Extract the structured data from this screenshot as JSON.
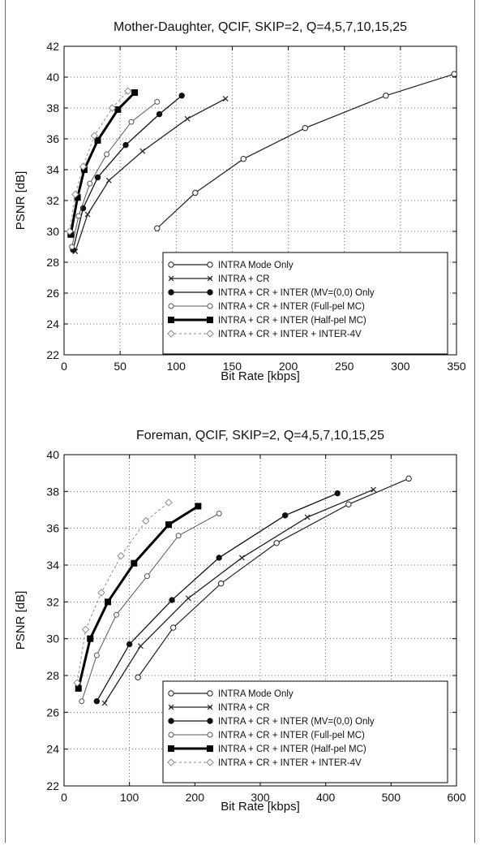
{
  "chart_data": [
    {
      "type": "line",
      "title": "Mother-Daughter, QCIF, SKIP=2, Q=4,5,7,10,15,25",
      "xlabel": "Bit Rate [kbps]",
      "ylabel": "PSNR [dB]",
      "xlim": [
        0,
        350
      ],
      "ylim": [
        22,
        42
      ],
      "xticks": [
        0,
        50,
        100,
        150,
        200,
        250,
        300,
        350
      ],
      "yticks": [
        22,
        24,
        26,
        28,
        30,
        32,
        34,
        36,
        38,
        40,
        42
      ],
      "grid": true,
      "legend_position": "lower-right",
      "series": [
        {
          "name": "INTRA Mode Only",
          "marker": "open-circle",
          "color": "#222222",
          "width": 1.2,
          "dash": "",
          "x": [
            83,
            117,
            160,
            215,
            287,
            348
          ],
          "y": [
            30.2,
            32.5,
            34.7,
            36.7,
            38.8,
            40.2
          ]
        },
        {
          "name": "INTRA + CR",
          "marker": "x",
          "color": "#222222",
          "width": 1.3,
          "dash": "",
          "x": [
            10,
            21,
            40,
            70,
            110,
            144
          ],
          "y": [
            28.7,
            31.1,
            33.3,
            35.2,
            37.3,
            38.6
          ]
        },
        {
          "name": "INTRA + CR + INTER (MV=(0,0) Only",
          "marker": "dot",
          "color": "#111111",
          "width": 1.3,
          "dash": "",
          "x": [
            8,
            17,
            30,
            55,
            85,
            105
          ],
          "y": [
            28.8,
            31.5,
            33.5,
            35.6,
            37.6,
            38.8
          ]
        },
        {
          "name": "INTRA + CR + INTER (Full-pel MC)",
          "marker": "star",
          "color": "#555555",
          "width": 1.0,
          "dash": "",
          "x": [
            7,
            13,
            23,
            38,
            60,
            83
          ],
          "y": [
            29.0,
            31.0,
            33.1,
            35.0,
            37.1,
            38.4
          ]
        },
        {
          "name": "INTRA + CR + INTER (Half-pel MC)",
          "marker": "square",
          "color": "#000000",
          "width": 3.0,
          "dash": "",
          "x": [
            6,
            12,
            18,
            30,
            48,
            63
          ],
          "y": [
            29.8,
            32.2,
            34.0,
            35.9,
            37.9,
            39.0
          ]
        },
        {
          "name": "INTRA + CR + INTER + INTER-4V",
          "marker": "diamond",
          "color": "#888888",
          "width": 1.0,
          "dash": "3,3",
          "x": [
            5,
            10,
            17,
            27,
            43,
            57
          ],
          "y": [
            30.0,
            32.4,
            34.2,
            36.2,
            38.0,
            39.1
          ]
        }
      ]
    },
    {
      "type": "line",
      "title": "Foreman, QCIF, SKIP=2, Q=4,5,7,10,15,25",
      "xlabel": "Bit Rate [kbps]",
      "ylabel": "PSNR [dB]",
      "xlim": [
        0,
        600
      ],
      "ylim": [
        22,
        40
      ],
      "xticks": [
        0,
        100,
        200,
        300,
        400,
        500,
        600
      ],
      "yticks": [
        22,
        24,
        26,
        28,
        30,
        32,
        34,
        36,
        38,
        40
      ],
      "grid": true,
      "legend_position": "lower-right",
      "series": [
        {
          "name": "INTRA Mode Only",
          "marker": "open-circle",
          "color": "#222222",
          "width": 1.2,
          "dash": "",
          "x": [
            113,
            167,
            240,
            325,
            435,
            527
          ],
          "y": [
            27.9,
            30.6,
            33.0,
            35.2,
            37.3,
            38.7
          ]
        },
        {
          "name": "INTRA + CR",
          "marker": "x",
          "color": "#222222",
          "width": 1.3,
          "dash": "",
          "x": [
            62,
            117,
            190,
            272,
            372,
            473
          ],
          "y": [
            26.5,
            29.6,
            32.2,
            34.4,
            36.6,
            38.1
          ]
        },
        {
          "name": "INTRA + CR + INTER (MV=(0,0) Only",
          "marker": "dot",
          "color": "#111111",
          "width": 1.3,
          "dash": "",
          "x": [
            50,
            100,
            165,
            237,
            338,
            418
          ],
          "y": [
            26.6,
            29.7,
            32.1,
            34.4,
            36.7,
            37.9
          ]
        },
        {
          "name": "INTRA + CR + INTER (Full-pel MC)",
          "marker": "star",
          "color": "#555555",
          "width": 1.0,
          "dash": "",
          "x": [
            27,
            50,
            80,
            127,
            175,
            237
          ],
          "y": [
            26.6,
            29.1,
            31.3,
            33.4,
            35.6,
            36.8
          ]
        },
        {
          "name": "INTRA + CR + INTER (Half-pel MC)",
          "marker": "square",
          "color": "#000000",
          "width": 3.0,
          "dash": "",
          "x": [
            22,
            40,
            67,
            107,
            160,
            205
          ],
          "y": [
            27.3,
            30.0,
            32.0,
            34.1,
            36.2,
            37.2
          ]
        },
        {
          "name": "INTRA + CR + INTER + INTER-4V",
          "marker": "diamond",
          "color": "#888888",
          "width": 1.0,
          "dash": "3,3",
          "x": [
            20,
            33,
            57,
            87,
            125,
            160
          ],
          "y": [
            27.6,
            30.5,
            32.5,
            34.5,
            36.4,
            37.4
          ]
        }
      ]
    }
  ]
}
